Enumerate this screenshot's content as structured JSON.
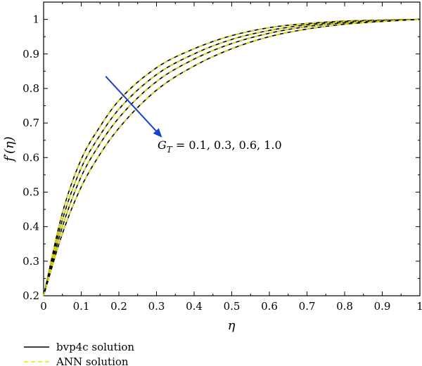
{
  "chart_data": {
    "type": "line",
    "xlabel": "η",
    "ylabel": "f′(η)",
    "xlim": [
      0,
      1
    ],
    "ylim": [
      0.2,
      1.05
    ],
    "xticks": [
      0,
      0.1,
      0.2,
      0.3,
      0.4,
      0.5,
      0.6,
      0.7,
      0.8,
      0.9,
      1
    ],
    "xtick_labels": [
      "0",
      "0.1",
      "0.2",
      "0.3",
      "0.4",
      "0.5",
      "0.6",
      "0.7",
      "0.8",
      "0.9",
      "1"
    ],
    "yticks": [
      0.2,
      0.3,
      0.4,
      0.5,
      0.6,
      0.7,
      0.8,
      0.9,
      1
    ],
    "ytick_labels": [
      "0.2",
      "0.3",
      "0.4",
      "0.5",
      "0.6",
      "0.7",
      "0.8",
      "0.9",
      "1"
    ],
    "x": [
      0,
      0.05,
      0.1,
      0.15,
      0.2,
      0.3,
      0.4,
      0.5,
      0.6,
      0.7,
      0.8,
      0.9,
      1
    ],
    "series": [
      {
        "param": 0.1,
        "values": [
          0.2,
          0.44,
          0.595,
          0.69,
          0.765,
          0.86,
          0.915,
          0.953,
          0.976,
          0.988,
          0.995,
          0.998,
          1.0
        ]
      },
      {
        "param": 0.3,
        "values": [
          0.2,
          0.42,
          0.57,
          0.665,
          0.74,
          0.84,
          0.9,
          0.942,
          0.968,
          0.984,
          0.993,
          0.997,
          1.0
        ]
      },
      {
        "param": 0.6,
        "values": [
          0.2,
          0.4,
          0.545,
          0.64,
          0.715,
          0.82,
          0.885,
          0.93,
          0.96,
          0.979,
          0.99,
          0.996,
          1.0
        ]
      },
      {
        "param": 1.0,
        "values": [
          0.2,
          0.38,
          0.515,
          0.61,
          0.685,
          0.795,
          0.865,
          0.915,
          0.95,
          0.972,
          0.986,
          0.994,
          1.0
        ]
      }
    ],
    "methods": [
      "bvp4c solution",
      "ANN solution"
    ],
    "annotation": {
      "symbol": "G",
      "subscript": "T",
      "text": " = 0.1, 0.3, 0.6, 1.0"
    },
    "arrow": {
      "from": [
        0.165,
        0.835
      ],
      "to": [
        0.315,
        0.658
      ],
      "color": "#1a3fd6"
    },
    "legend": {
      "position": "below",
      "entries": [
        {
          "label": "bvp4c solution",
          "color": "#000000",
          "style": "solid"
        },
        {
          "label": "ANN solution",
          "color": "#e8e800",
          "style": "dashed"
        }
      ]
    },
    "grid": false
  }
}
